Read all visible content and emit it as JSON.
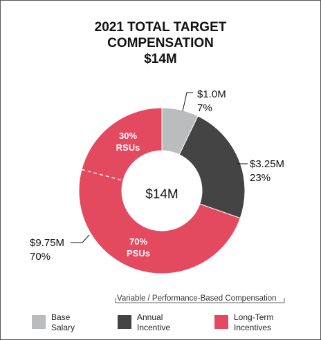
{
  "title": [
    "2021 TOTAL TARGET",
    "COMPENSATION",
    "$14M"
  ],
  "center_label": "$14M",
  "bracket_label": "Variable / Performance-Based Compensation",
  "colors": {
    "base": "#bbbcbe",
    "annual": "#444444",
    "long_term": "#e3495f",
    "text": "#111111"
  },
  "chart_data": {
    "type": "pie",
    "title": "2021 TOTAL TARGET COMPENSATION $14M",
    "total": "$14M",
    "slices": [
      {
        "name": "Base Salary",
        "value": 1.0,
        "percent": 7,
        "amount_label": "$1.0M",
        "percent_label": "7%",
        "color": "#bbbcbe"
      },
      {
        "name": "Annual Incentive",
        "value": 3.25,
        "percent": 23,
        "amount_label": "$3.25M",
        "percent_label": "23%",
        "color": "#444444"
      },
      {
        "name": "Long-Term Incentives",
        "value": 9.75,
        "percent": 70,
        "amount_label": "$9.75M",
        "percent_label": "70%",
        "color": "#e3495f",
        "sub_slices": [
          {
            "name": "PSUs",
            "percent": 70,
            "line1": "70%",
            "line2": "PSUs"
          },
          {
            "name": "RSUs",
            "percent": 30,
            "line1": "30%",
            "line2": "RSUs"
          }
        ]
      }
    ],
    "legend": [
      {
        "line1": "Base",
        "line2": "Salary",
        "color": "#bbbcbe"
      },
      {
        "line1": "Annual",
        "line2": "Incentive",
        "color": "#444444"
      },
      {
        "line1": "Long-Term",
        "line2": "Incentives",
        "color": "#e3495f"
      }
    ],
    "legend_position": "bottom"
  }
}
